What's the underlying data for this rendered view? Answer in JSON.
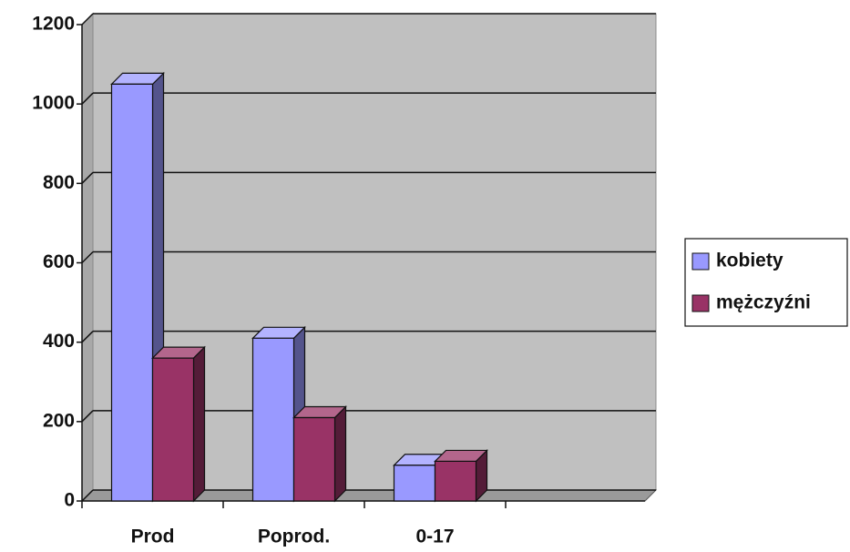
{
  "chart_data": {
    "type": "bar3d",
    "categories": [
      "Prod",
      "Poprod.",
      "0-17"
    ],
    "series": [
      {
        "name": "kobiety",
        "color": "#9999ff",
        "values": [
          1050,
          410,
          90
        ]
      },
      {
        "name": "mężczyźni",
        "color": "#993366",
        "values": [
          360,
          210,
          100
        ]
      }
    ],
    "ylim": [
      0,
      1200
    ],
    "yticks": [
      0,
      200,
      400,
      600,
      800,
      1000,
      1200
    ],
    "grid": true,
    "legend": "right"
  }
}
